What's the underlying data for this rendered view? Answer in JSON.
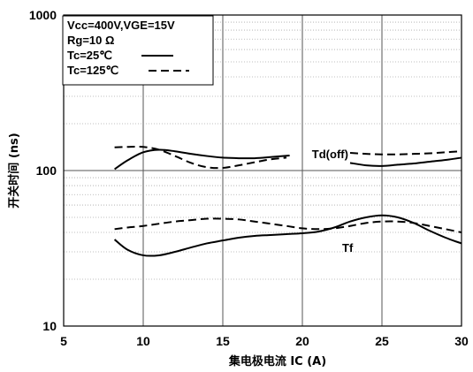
{
  "chart_data": {
    "type": "line",
    "title": "",
    "xlabel": "集电极电流  IC (A)",
    "ylabel": "开关时间 (ns)",
    "xlim": [
      5,
      30
    ],
    "ylim": [
      10,
      1000
    ],
    "yscale": "log",
    "x_ticks": [
      "5",
      "10",
      "15",
      "20",
      "25",
      "30"
    ],
    "y_ticks": [
      {
        "value": 10,
        "label": "10"
      },
      {
        "value": 100,
        "label": "100"
      },
      {
        "value": 1000,
        "label": "1000"
      }
    ],
    "grid": true,
    "legend_lines": [
      "Vcc=400V,VGE=15V",
      "Rg=10 Ω",
      "Tc=25℃",
      "Tc=125℃"
    ],
    "annotations": [
      {
        "text": "Td(off)",
        "x": 20.6,
        "y": 120
      },
      {
        "text": "Tf",
        "x": 22.5,
        "y": 30
      }
    ],
    "series": [
      {
        "curve": "Td(off)",
        "temp": "25",
        "style": "solid",
        "x": [
          8.2,
          9,
          10,
          11,
          12,
          13,
          14,
          15,
          16,
          17,
          18,
          19.2
        ],
        "y": [
          102,
          116,
          131,
          136,
          133,
          128,
          124,
          121,
          120,
          120,
          122,
          125
        ]
      },
      {
        "curve": "Td(off)",
        "temp": "25",
        "style": "solid",
        "x": [
          23,
          24,
          25,
          26,
          27,
          28,
          29,
          30
        ],
        "y": [
          112,
          108,
          107,
          109,
          111,
          114,
          117,
          121
        ]
      },
      {
        "curve": "Td(off)",
        "temp": "125",
        "style": "dashed",
        "x": [
          8.2,
          9,
          10,
          11,
          12,
          13,
          14,
          15,
          16,
          17,
          18,
          19
        ],
        "y": [
          141,
          142,
          142,
          136,
          124,
          112,
          105,
          104,
          108,
          113,
          118,
          121
        ]
      },
      {
        "curve": "Td(off)",
        "temp": "125",
        "style": "dashed",
        "x": [
          23,
          24,
          25,
          26,
          27,
          28,
          29,
          30
        ],
        "y": [
          130,
          128,
          127,
          127,
          128,
          129,
          131,
          133
        ]
      },
      {
        "curve": "Tf",
        "temp": "25",
        "style": "solid",
        "x": [
          8.2,
          9,
          10,
          11,
          12,
          13,
          14,
          15,
          16,
          17,
          18,
          19,
          20,
          21,
          22,
          23,
          24,
          25,
          26,
          27,
          28,
          29,
          30
        ],
        "y": [
          36,
          31,
          28.5,
          28.5,
          30,
          32,
          34,
          35.5,
          37,
          38,
          38.5,
          39,
          39.5,
          40.5,
          43,
          47,
          50,
          51.5,
          50,
          46,
          41,
          37,
          34
        ]
      },
      {
        "curve": "Tf",
        "temp": "125",
        "style": "dashed",
        "x": [
          8.2,
          9,
          10,
          11,
          12,
          13,
          14,
          15,
          16,
          17,
          18,
          19,
          20,
          21,
          22,
          23,
          24,
          25,
          26,
          27,
          28,
          29,
          30
        ],
        "y": [
          42,
          43,
          44,
          45.5,
          47,
          48,
          49,
          49,
          48.5,
          47,
          45.5,
          44,
          42.5,
          42,
          42.5,
          44,
          46,
          47,
          47,
          46,
          44,
          42,
          40
        ]
      }
    ]
  }
}
